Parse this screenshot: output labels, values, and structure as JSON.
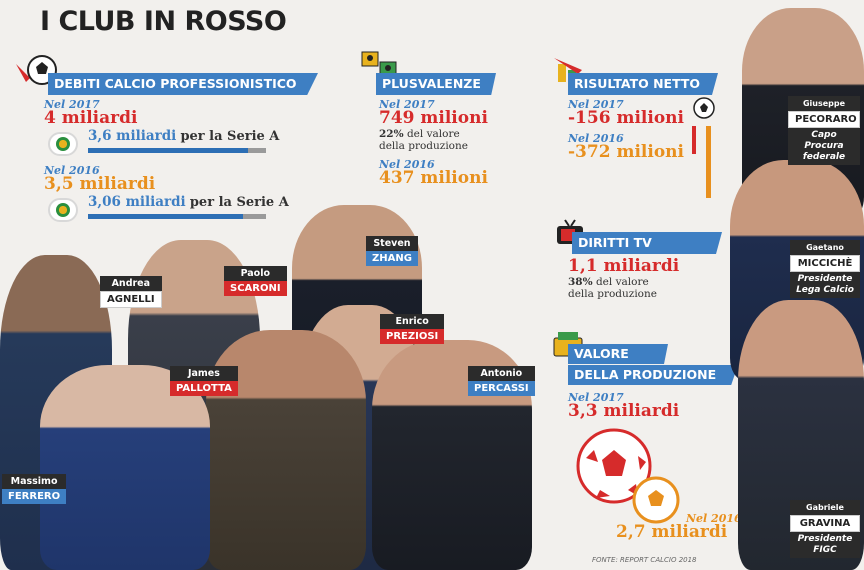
{
  "title": "I CLUB IN ROSSO",
  "debiti": {
    "banner": "DEBITI CALCIO PROFESSIONISTICO",
    "y2017_label": "Nel 2017",
    "y2017_value": "4 miliardi",
    "y2017_serie_a_amount": "3,6 miliardi",
    "y2017_serie_a_text": "per la Serie A",
    "y2017_share": 0.9,
    "y2016_label": "Nel 2016",
    "y2016_value": "3,5 miliardi",
    "y2016_serie_a_amount": "3,06 miliardi",
    "y2016_serie_a_text": "per la Serie A",
    "y2016_share": 0.87
  },
  "plusvalenze": {
    "banner": "PLUSVALENZE",
    "y2017_label": "Nel 2017",
    "y2017_value": "749 milioni",
    "y2017_pct": "22%",
    "y2017_pct_text_1": "del valore",
    "y2017_pct_text_2": "della produzione",
    "y2016_label": "Nel 2016",
    "y2016_value": "437 milioni"
  },
  "risultato": {
    "banner": "RISULTATO NETTO",
    "y2017_label": "Nel 2017",
    "y2017_value": "-156 milioni",
    "y2016_label": "Nel 2016",
    "y2016_value": "-372 milioni"
  },
  "diritti": {
    "banner": "DIRITTI TV",
    "value": "1,1 miliardi",
    "pct": "38%",
    "pct_text_1": "del valore",
    "pct_text_2": "della produzione"
  },
  "valore": {
    "banner_1": "VALORE",
    "banner_2": "DELLA PRODUZIONE",
    "y2017_label": "Nel 2017",
    "y2017_value": "3,3 miliardi",
    "y2016_label": "Nel 2016",
    "y2016_value": "2,7 miliardi"
  },
  "people": {
    "agnelli": {
      "first": "Andrea",
      "last": "AGNELLI"
    },
    "scaroni": {
      "first": "Paolo",
      "last": "SCARONI"
    },
    "zhang": {
      "first": "Steven",
      "last": "ZHANG"
    },
    "preziosi": {
      "first": "Enrico",
      "last": "PREZIOSI"
    },
    "pallotta": {
      "first": "James",
      "last": "PALLOTTA"
    },
    "percassi": {
      "first": "Antonio",
      "last": "PERCASSI"
    },
    "ferrero": {
      "first": "Massimo",
      "last": "FERRERO"
    },
    "pecoraro": {
      "first": "Giuseppe",
      "last": "PECORARO",
      "role_1": "Capo Procura",
      "role_2": "federale"
    },
    "micciche": {
      "first": "Gaetano",
      "last": "MICCICHÈ",
      "role_1": "Presidente",
      "role_2": "Lega Calcio"
    },
    "gravina": {
      "first": "Gabriele",
      "last": "GRAVINA",
      "role_1": "Presidente",
      "role_2": "FIGC"
    }
  },
  "source": "FONTE: REPORT CALCIO 2018",
  "colors": {
    "blue": "#3e7fc3",
    "red": "#d62b2b",
    "orange": "#e8901e"
  }
}
